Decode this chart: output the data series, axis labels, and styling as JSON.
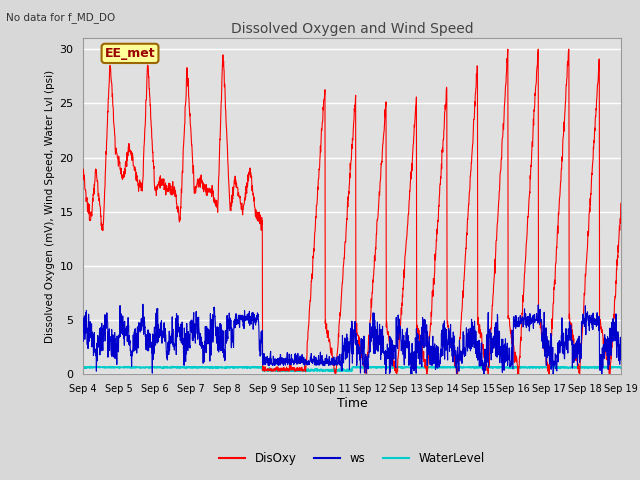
{
  "title": "Dissolved Oxygen and Wind Speed",
  "top_left_text": "No data for f_MD_DO",
  "ylabel": "Dissolved Oxygen (mV), Wind Speed, Water Lvl (psi)",
  "xlabel": "Time",
  "ylim": [
    0,
    31
  ],
  "yticks": [
    0,
    5,
    10,
    15,
    20,
    25,
    30
  ],
  "xtick_labels": [
    "Sep 4",
    "Sep 5",
    "Sep 6",
    "Sep 7",
    "Sep 8",
    "Sep 9",
    "Sep 10",
    "Sep 11",
    "Sep 12",
    "Sep 13",
    "Sep 14",
    "Sep 15",
    "Sep 16",
    "Sep 17",
    "Sep 18",
    "Sep 19"
  ],
  "bg_color": "#e0e0e0",
  "grid_color": "#ffffff",
  "fig_bg_color": "#d8d8d8",
  "disoxy_color": "#ff0000",
  "ws_color": "#0000cc",
  "waterlevel_color": "#00cccc",
  "legend_label_disoxy": "DisOxy",
  "legend_label_ws": "ws",
  "legend_label_wl": "WaterLevel",
  "annotation_box": "EE_met",
  "annotation_box_bg": "#ffff99",
  "annotation_box_edge": "#996600"
}
